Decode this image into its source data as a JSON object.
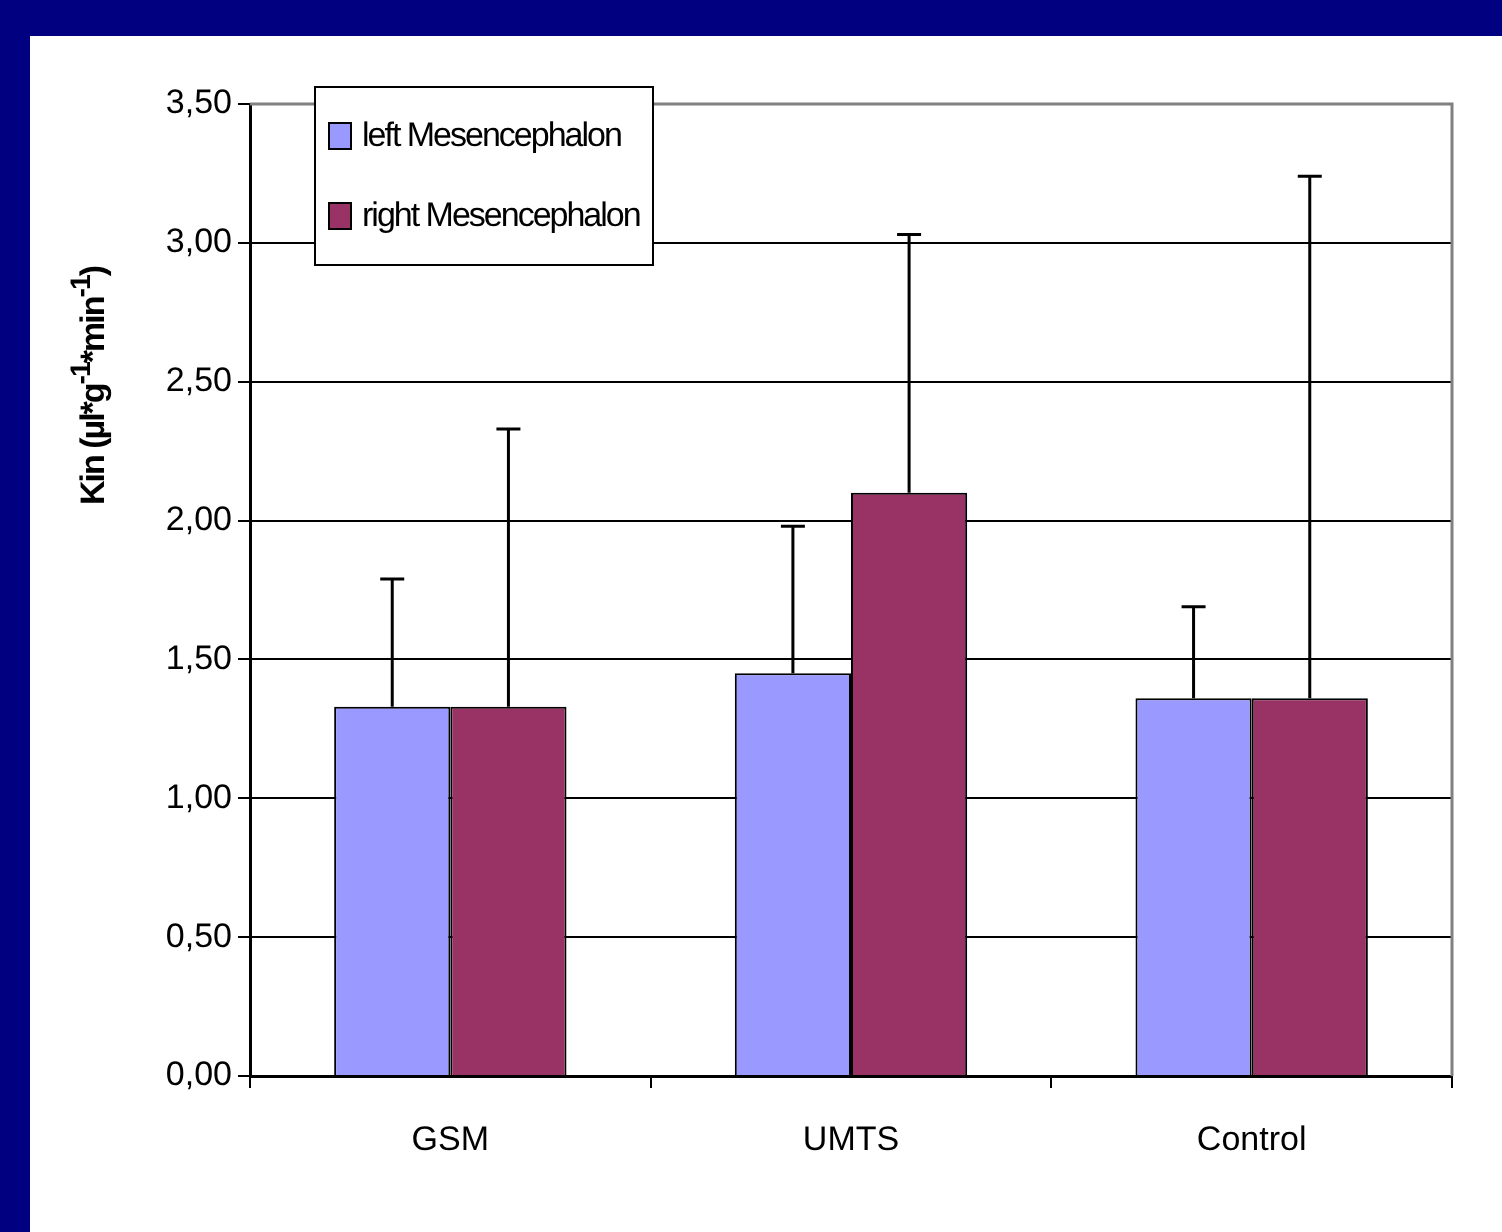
{
  "chart_data": {
    "type": "bar",
    "ylabel": "Kin (µl*g$^{-1}$*min$^{-1}$)",
    "categories": [
      "GSM",
      "UMTS",
      "Control"
    ],
    "series": [
      {
        "name": "left Mesencephalon",
        "color": "#9999ff",
        "values": [
          1.33,
          1.45,
          1.36
        ],
        "errors": [
          [
            1.33,
            1.79
          ],
          [
            1.45,
            1.98
          ],
          [
            1.36,
            1.69
          ]
        ]
      },
      {
        "name": "right Mesencephalon",
        "color": "#993366",
        "values": [
          1.33,
          2.1,
          1.36
        ],
        "errors": [
          [
            1.33,
            2.33
          ],
          [
            2.1,
            3.03
          ],
          [
            1.36,
            3.24
          ]
        ]
      }
    ],
    "ylim": [
      0,
      3.5
    ],
    "yticks": [
      {
        "value": 0,
        "label": "0,00"
      },
      {
        "value": 0.5,
        "label": "0,50"
      },
      {
        "value": 1,
        "label": "1,00"
      },
      {
        "value": 1.5,
        "label": "1,50"
      },
      {
        "value": 2,
        "label": "2,00"
      },
      {
        "value": 2.5,
        "label": "2,50"
      },
      {
        "value": 3,
        "label": "3,00"
      },
      {
        "value": 3.5,
        "label": "3,50"
      }
    ],
    "grid": "y",
    "legend": "top left"
  }
}
